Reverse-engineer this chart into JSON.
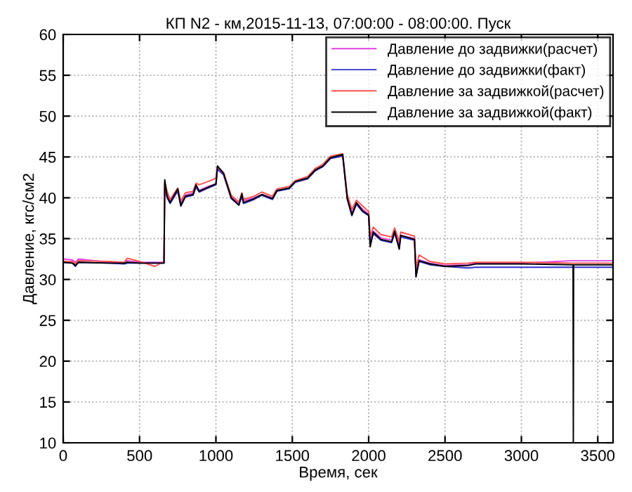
{
  "chart_data": {
    "type": "line",
    "title": "КП N2 - км,2015-11-13, 07:00:00 - 08:00:00. Пуск",
    "xlabel": "Время, сек",
    "ylabel": "Давление, кгс/см2",
    "x": [
      0,
      60,
      80,
      100,
      300,
      400,
      420,
      500,
      600,
      660,
      665,
      680,
      700,
      750,
      770,
      800,
      850,
      870,
      890,
      950,
      1000,
      1010,
      1050,
      1100,
      1150,
      1170,
      1180,
      1250,
      1300,
      1370,
      1400,
      1480,
      1520,
      1600,
      1650,
      1700,
      1750,
      1830,
      1860,
      1890,
      1920,
      1960,
      2000,
      2010,
      2030,
      2080,
      2150,
      2170,
      2200,
      2210,
      2300,
      2310,
      2330,
      2400,
      2500,
      2650,
      2700,
      3000,
      3338,
      3340,
      3342,
      3600
    ],
    "series": [
      {
        "name": "Давление до задвижки(расчет)",
        "color": "#e040e0",
        "values": [
          32.5,
          32.4,
          32.1,
          32.5,
          32.1,
          32.1,
          32.3,
          32.1,
          32.1,
          32.1,
          41.8,
          40.5,
          39.6,
          41.0,
          39.3,
          40.3,
          40.6,
          41.5,
          40.9,
          41.4,
          41.7,
          43.6,
          42.9,
          40.1,
          39.3,
          40.3,
          39.6,
          40.0,
          40.4,
          40.0,
          40.9,
          41.2,
          42.0,
          42.4,
          43.4,
          43.9,
          44.9,
          45.2,
          40.1,
          38.2,
          39.4,
          38.6,
          38.0,
          34.8,
          35.9,
          35.1,
          34.8,
          35.9,
          34.2,
          35.4,
          35.0,
          31.0,
          32.4,
          32.0,
          31.7,
          31.8,
          32.0,
          32.0,
          32.3,
          32.3,
          32.3,
          32.3
        ]
      },
      {
        "name": "Давление до задвижки(факт)",
        "color": "#3030c8",
        "values": [
          32.1,
          32.0,
          31.6,
          32.1,
          32.0,
          31.9,
          32.0,
          32.0,
          32.0,
          32.0,
          41.6,
          40.0,
          39.3,
          40.8,
          39.0,
          40.1,
          40.3,
          41.3,
          40.7,
          41.2,
          41.6,
          43.5,
          42.8,
          39.9,
          39.1,
          40.2,
          39.3,
          39.8,
          40.3,
          39.8,
          40.8,
          41.1,
          41.9,
          42.3,
          43.3,
          43.8,
          44.8,
          45.1,
          39.8,
          37.8,
          39.2,
          38.3,
          37.8,
          34.2,
          35.6,
          34.8,
          34.5,
          35.7,
          33.8,
          35.2,
          34.8,
          30.5,
          32.2,
          31.8,
          31.6,
          31.4,
          31.5,
          31.5,
          31.5,
          31.5,
          31.5,
          31.5
        ]
      },
      {
        "name": "Давление за задвижкой(расчет)",
        "color": "#ff5050",
        "values": [
          32.2,
          32.2,
          31.9,
          32.3,
          32.2,
          32.1,
          32.6,
          32.2,
          31.6,
          32.2,
          42.0,
          40.8,
          39.8,
          41.2,
          39.6,
          40.6,
          40.8,
          41.8,
          41.6,
          42.0,
          42.4,
          43.8,
          43.1,
          40.3,
          39.5,
          40.6,
          39.8,
          40.2,
          40.7,
          40.2,
          41.1,
          41.4,
          42.1,
          42.6,
          43.6,
          44.1,
          45.1,
          45.4,
          40.4,
          38.6,
          39.7,
          39.0,
          38.3,
          35.3,
          36.4,
          35.5,
          35.2,
          36.3,
          34.7,
          35.8,
          35.3,
          31.5,
          33.0,
          32.2,
          31.9,
          32.0,
          32.1,
          32.1,
          32.0,
          32.0,
          32.0,
          32.0
        ]
      },
      {
        "name": "Давление за задвижкой(факт)",
        "color": "#000000",
        "values": [
          32.1,
          32.0,
          31.7,
          32.1,
          32.0,
          32.0,
          32.1,
          32.0,
          32.0,
          32.0,
          42.2,
          40.2,
          39.4,
          41.1,
          39.0,
          40.2,
          40.4,
          41.6,
          40.8,
          41.3,
          41.7,
          43.9,
          43.0,
          40.0,
          39.1,
          40.5,
          39.4,
          39.9,
          40.4,
          39.9,
          40.9,
          41.2,
          42.0,
          42.4,
          43.4,
          43.9,
          44.9,
          45.3,
          39.9,
          37.9,
          39.4,
          38.4,
          37.9,
          34.0,
          35.8,
          34.9,
          34.6,
          35.9,
          33.7,
          35.4,
          34.9,
          30.3,
          32.3,
          31.9,
          31.6,
          31.7,
          31.9,
          31.9,
          31.8,
          10,
          31.8,
          31.8
        ]
      }
    ],
    "xlim": [
      0,
      3600
    ],
    "ylim": [
      10,
      60
    ],
    "xticks": [
      0,
      500,
      1000,
      1500,
      2000,
      2500,
      3000,
      3500
    ],
    "yticks": [
      10,
      15,
      20,
      25,
      30,
      35,
      40,
      45,
      50,
      55,
      60
    ],
    "grid": true,
    "legend": "top right",
    "line_style": "solid",
    "marker": "none"
  }
}
